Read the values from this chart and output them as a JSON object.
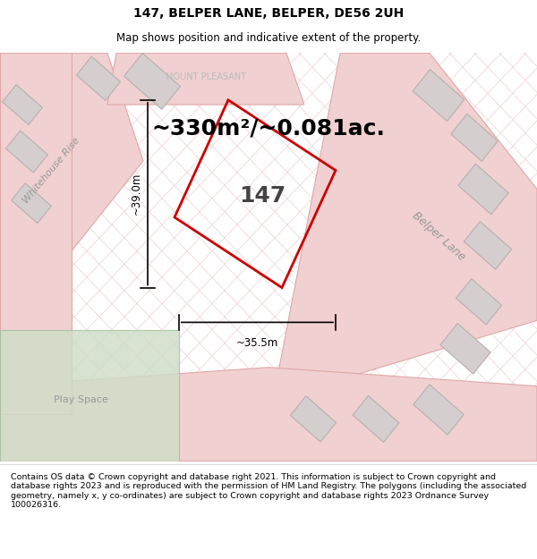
{
  "title": "147, BELPER LANE, BELPER, DE56 2UH",
  "subtitle": "Map shows position and indicative extent of the property.",
  "area_text": "~330m²/~0.081ac.",
  "label_147": "147",
  "label_width": "~35.5m",
  "label_height": "~39.0m",
  "road_label_belper": "Belper Lane",
  "road_label_whitehouse": "Whitehouse Rise",
  "street_label_mount": "MOUNT PLEASANT",
  "play_space_label": "Play Space",
  "map_bg": "#f2f0f0",
  "plot_outline_color": "#cc0000",
  "road_color": "#f0d0d0",
  "road_border_color": "#e0a8a8",
  "building_color": "#d4cece",
  "building_border": "#b8b0b0",
  "grass_color": "#d0ddc8",
  "hatch_color": "#e8c8c8",
  "footer_text": "Contains OS data © Crown copyright and database right 2021. This information is subject to Crown copyright and database rights 2023 and is reproduced with the permission of HM Land Registry. The polygons (including the associated geometry, namely x, y co-ordinates) are subject to Crown copyright and database rights 2023 Ordnance Survey 100026316.",
  "fig_width": 6.0,
  "fig_height": 6.25,
  "title_fontsize": 10,
  "subtitle_fontsize": 8.5,
  "area_fontsize": 18,
  "measurement_fontsize": 8.5,
  "road_label_fontsize": 9,
  "number_fontsize": 18
}
